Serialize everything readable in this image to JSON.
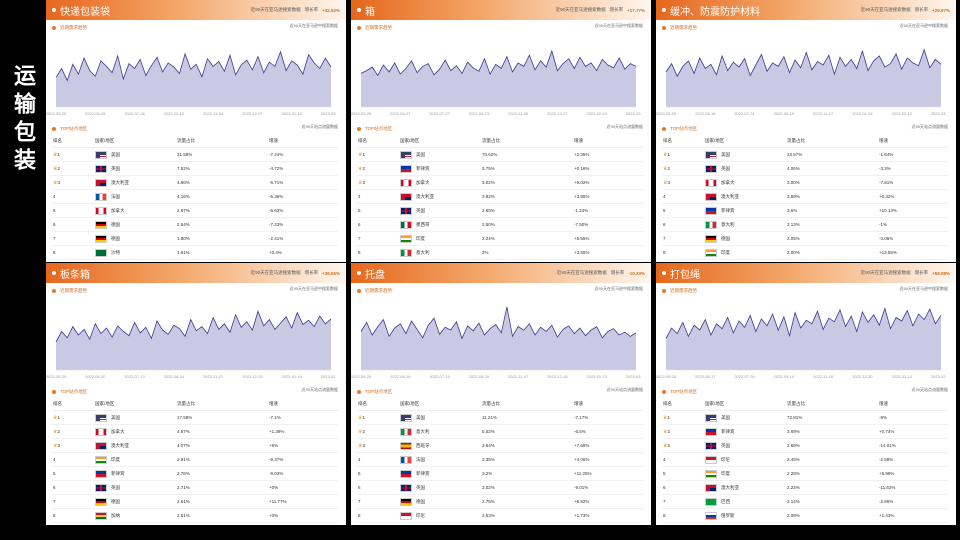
{
  "side_title": "运输包装",
  "colors": {
    "accent": "#e6671c",
    "line": "#3b3b8f",
    "fill": "#c9c9e3"
  },
  "cards": [
    {
      "title": "快递包装袋",
      "header": {
        "desc": "近90天在亚马逊搜索数据",
        "growth_label": "增长率",
        "growth": "+32.92%"
      },
      "trend_label": "近期需求趋势",
      "trend_note": "近90天在亚马逊中搜索数据",
      "dates": [
        "2022-05-25",
        "2022-06-25",
        "2022-07-26",
        "2022-09-10",
        "2022-11-04",
        "2022-12-07",
        "2023-01-12",
        "2023-03-01"
      ],
      "series": [
        42,
        55,
        38,
        61,
        47,
        70,
        52,
        44,
        66,
        58,
        49,
        73,
        40,
        62,
        55,
        68,
        45,
        59,
        71,
        50,
        63,
        57,
        48,
        76,
        54,
        61,
        43,
        69,
        58,
        65,
        51,
        74,
        46,
        60,
        67,
        53,
        72,
        49,
        64,
        58,
        79,
        52,
        66,
        60,
        47,
        75,
        63,
        55,
        70,
        57
      ],
      "top_label": "TOP站点地区",
      "top_note": "近90天站点流量数据",
      "columns": [
        "排名",
        "国家/地区",
        "流量占比",
        "增速"
      ],
      "rows": [
        {
          "rank": "1",
          "flag": "us",
          "country": "美国",
          "share": "31.58%",
          "growth": "-7.24%"
        },
        {
          "rank": "2",
          "flag": "gb",
          "country": "英国",
          "share": "7.52%",
          "growth": "-4.72%"
        },
        {
          "rank": "3",
          "flag": "au",
          "country": "澳大利亚",
          "share": "4.86%",
          "growth": "-5.71%"
        },
        {
          "rank": "4",
          "flag": "fr",
          "country": "法国",
          "share": "4.16%",
          "growth": "-5.36%"
        },
        {
          "rank": "5",
          "flag": "ca",
          "country": "加拿大",
          "share": "2.87%",
          "growth": "-5.63%"
        },
        {
          "rank": "6",
          "flag": "de",
          "country": "德国",
          "share": "2.54%",
          "growth": "-7.43%"
        },
        {
          "rank": "7",
          "flag": "de",
          "country": "德国",
          "share": "1.80%",
          "growth": "-2.41%"
        },
        {
          "rank": "8",
          "flag": "sa",
          "country": "沙特",
          "share": "1.61%",
          "growth": "+0.4%"
        }
      ]
    },
    {
      "title": "箱",
      "header": {
        "desc": "近90天在亚马逊搜索数据",
        "growth_label": "增长率",
        "growth": "+17.77%"
      },
      "trend_label": "近期需求趋势",
      "trend_note": "近90天在亚马逊中搜索数据",
      "dates": [
        "2022-05-25",
        "2022-06-27",
        "2022-07-27",
        "2022-09-23",
        "2022-11-05",
        "2022-12-27",
        "2023-02-04",
        "2023-03-05"
      ],
      "series": [
        48,
        52,
        57,
        45,
        60,
        50,
        63,
        47,
        55,
        66,
        49,
        58,
        62,
        46,
        54,
        67,
        52,
        59,
        48,
        64,
        56,
        51,
        69,
        47,
        61,
        55,
        72,
        50,
        63,
        58,
        74,
        53,
        66,
        57,
        80,
        52,
        62,
        69,
        55,
        71,
        58,
        63,
        52,
        68,
        60,
        56,
        70,
        54,
        62,
        58
      ],
      "top_label": "TOP站点地区",
      "top_note": "近90天站点流量数据",
      "columns": [
        "排名",
        "国家/地区",
        "流量占比",
        "增速"
      ],
      "rows": [
        {
          "rank": "1",
          "flag": "us",
          "country": "美国",
          "share": "70.62%",
          "growth": "+2.35%"
        },
        {
          "rank": "2",
          "flag": "ph",
          "country": "菲律宾",
          "share": "3.75%",
          "growth": "+0.16%"
        },
        {
          "rank": "3",
          "flag": "ca",
          "country": "加拿大",
          "share": "3.02%",
          "growth": "+5.02%"
        },
        {
          "rank": "4",
          "flag": "au",
          "country": "澳大利亚",
          "share": "3.82%",
          "growth": "+3.85%"
        },
        {
          "rank": "5",
          "flag": "gb",
          "country": "英国",
          "share": "2.60%",
          "growth": "-1.24%"
        },
        {
          "rank": "6",
          "flag": "mx",
          "country": "墨西哥",
          "share": "2.50%",
          "growth": "-7.50%"
        },
        {
          "rank": "7",
          "flag": "in",
          "country": "印度",
          "share": "2.24%",
          "growth": "+5.55%"
        },
        {
          "rank": "8",
          "flag": "it",
          "country": "意大利",
          "share": "2%",
          "growth": "+3.55%"
        }
      ]
    },
    {
      "title": "缓冲、防震防护材料",
      "header": {
        "desc": "近90天在亚马逊搜索数据",
        "growth_label": "增长率",
        "growth": "+29.97%"
      },
      "trend_label": "近期需求趋势",
      "trend_note": "近90天在亚马逊中搜索数据",
      "dates": [
        "2022-05-26",
        "2022-06-18",
        "2022-07-31",
        "2022-09-19",
        "2022-11-17",
        "2023-01-04",
        "2023-02-12",
        "2023-03-17"
      ],
      "series": [
        50,
        62,
        44,
        58,
        66,
        48,
        70,
        55,
        61,
        46,
        73,
        52,
        64,
        57,
        69,
        45,
        60,
        75,
        51,
        63,
        58,
        72,
        49,
        67,
        56,
        78,
        53,
        65,
        60,
        74,
        47,
        71,
        58,
        68,
        55,
        80,
        52,
        66,
        73,
        57,
        62,
        76,
        54,
        70,
        63,
        59,
        82,
        56,
        68,
        61
      ],
      "top_label": "TOP站点地区",
      "top_note": "近90天站点流量数据",
      "columns": [
        "排名",
        "国家/地区",
        "流量占比",
        "增速"
      ],
      "rows": [
        {
          "rank": "1",
          "flag": "us",
          "country": "美国",
          "share": "23.57%",
          "growth": "-1.64%"
        },
        {
          "rank": "2",
          "flag": "gb",
          "country": "英国",
          "share": "4.06%",
          "growth": "-3.3%"
        },
        {
          "rank": "3",
          "flag": "ca",
          "country": "加拿大",
          "share": "3.00%",
          "growth": "-7.61%"
        },
        {
          "rank": "4",
          "flag": "au",
          "country": "澳大利亚",
          "share": "3.69%",
          "growth": "+0.32%"
        },
        {
          "rank": "5",
          "flag": "ph",
          "country": "菲律宾",
          "share": "3.6%",
          "growth": "+10.13%"
        },
        {
          "rank": "6",
          "flag": "it",
          "country": "意大利",
          "share": "2.13%",
          "growth": "-1%"
        },
        {
          "rank": "7",
          "flag": "de",
          "country": "德国",
          "share": "2.05%",
          "growth": "-3.06%"
        },
        {
          "rank": "8",
          "flag": "in",
          "country": "印度",
          "share": "2.00%",
          "growth": "+13.55%"
        }
      ]
    },
    {
      "title": "板条箱",
      "header": {
        "desc": "近90天在亚马逊搜索数据",
        "growth_label": "增长率",
        "growth": "+36.55%"
      },
      "trend_label": "近期需求趋势",
      "trend_note": "近90天在亚马逊中搜索数据",
      "dates": [
        "2022-05-25",
        "2022-06-30",
        "2022-07-13",
        "2022-08-24",
        "2022-11-27",
        "2022-12-28",
        "2023-01-14",
        "2023-02-27"
      ],
      "series": [
        40,
        55,
        46,
        62,
        50,
        58,
        44,
        66,
        52,
        60,
        47,
        63,
        55,
        49,
        68,
        53,
        61,
        45,
        70,
        57,
        51,
        64,
        59,
        48,
        72,
        56,
        62,
        52,
        75,
        58,
        66,
        54,
        79,
        61,
        69,
        57,
        84,
        63,
        72,
        58,
        67,
        76,
        60,
        82,
        65,
        71,
        62,
        77,
        66,
        73
      ],
      "top_label": "TOP站点地区",
      "top_note": "近90天站点流量数据",
      "columns": [
        "排名",
        "国家/地区",
        "流量占比",
        "增速"
      ],
      "rows": [
        {
          "rank": "1",
          "flag": "us",
          "country": "美国",
          "share": "17.58%",
          "growth": "-7.1%"
        },
        {
          "rank": "2",
          "flag": "ca",
          "country": "加拿大",
          "share": "4.67%",
          "growth": "+1.39%"
        },
        {
          "rank": "3",
          "flag": "au",
          "country": "澳大利亚",
          "share": "4.07%",
          "growth": "+6%"
        },
        {
          "rank": "4",
          "flag": "in",
          "country": "印度",
          "share": "2.91%",
          "growth": "-9.37%"
        },
        {
          "rank": "5",
          "flag": "ph",
          "country": "菲律宾",
          "share": "2.76%",
          "growth": "-9.03%"
        },
        {
          "rank": "6",
          "flag": "gb",
          "country": "英国",
          "share": "2.71%",
          "growth": "+0%"
        },
        {
          "rank": "7",
          "flag": "de",
          "country": "德国",
          "share": "2.61%",
          "growth": "+11.77%"
        },
        {
          "rank": "8",
          "flag": "gh",
          "country": "加纳",
          "share": "2.51%",
          "growth": "+0%"
        }
      ]
    },
    {
      "title": "托盘",
      "header": {
        "desc": "近90天在亚马逊搜索数据",
        "growth_label": "增长率",
        "growth": "-10.23%"
      },
      "trend_label": "近期需求趋势",
      "trend_note": "近90天在亚马逊中搜索数据",
      "dates": [
        "2022-05-25",
        "2022-06-16",
        "2022-07-13",
        "2022-08-29",
        "2022-11-07",
        "2022-12-16",
        "2023-01-12",
        "2023-03-05"
      ],
      "series": [
        55,
        68,
        50,
        62,
        72,
        48,
        60,
        66,
        52,
        70,
        58,
        46,
        64,
        74,
        51,
        61,
        57,
        69,
        45,
        63,
        56,
        67,
        50,
        59,
        65,
        53,
        90,
        48,
        62,
        57,
        66,
        50,
        61,
        55,
        64,
        47,
        58,
        63,
        52,
        60,
        49,
        57,
        62,
        46,
        55,
        59,
        50,
        54,
        48,
        53
      ],
      "top_label": "TOP站点地区",
      "top_note": "近90天站点流量数据",
      "columns": [
        "排名",
        "国家/地区",
        "流量占比",
        "增速"
      ],
      "rows": [
        {
          "rank": "1",
          "flag": "us",
          "country": "美国",
          "share": "11.21%",
          "growth": "-7.17%"
        },
        {
          "rank": "2",
          "flag": "it",
          "country": "意大利",
          "share": "5.52%",
          "growth": "-6.5%"
        },
        {
          "rank": "3",
          "flag": "es",
          "country": "西班牙",
          "share": "3.64%",
          "growth": "+7.68%"
        },
        {
          "rank": "4",
          "flag": "fr",
          "country": "法国",
          "share": "3.35%",
          "growth": "+4.06%"
        },
        {
          "rank": "5",
          "flag": "ph",
          "country": "菲律宾",
          "share": "3.2%",
          "growth": "+11.25%"
        },
        {
          "rank": "6",
          "flag": "gb",
          "country": "英国",
          "share": "3.02%",
          "growth": "-9.01%"
        },
        {
          "rank": "7",
          "flag": "de",
          "country": "德国",
          "share": "2.75%",
          "growth": "+8.92%"
        },
        {
          "rank": "8",
          "flag": "id",
          "country": "印尼",
          "share": "2.53%",
          "growth": "+1.73%"
        }
      ]
    },
    {
      "title": "打包绳",
      "header": {
        "desc": "近90天在亚马逊搜索数据",
        "growth_label": "增长率",
        "growth": "+58.98%"
      },
      "trend_label": "近期需求趋势",
      "trend_note": "近90天在亚马逊中搜索数据",
      "dates": [
        "2022-05-26",
        "2022-06-17",
        "2022-07-30",
        "2022-09-14",
        "2022-11-26",
        "2022-12-30",
        "2023-01-14",
        "2023-02-26"
      ],
      "series": [
        45,
        60,
        52,
        68,
        48,
        64,
        57,
        72,
        50,
        66,
        59,
        75,
        53,
        70,
        61,
        78,
        55,
        73,
        63,
        80,
        57,
        76,
        49,
        82,
        60,
        71,
        66,
        84,
        58,
        74,
        69,
        86,
        62,
        77,
        55,
        83,
        68,
        79,
        64,
        88,
        59,
        75,
        70,
        85,
        63,
        80,
        72,
        87,
        66,
        78
      ],
      "top_label": "TOP站点地区",
      "top_note": "近90天站点流量数据",
      "columns": [
        "排名",
        "国家/地区",
        "流量占比",
        "增速"
      ],
      "rows": [
        {
          "rank": "1",
          "flag": "us",
          "country": "美国",
          "share": "72.81%",
          "growth": "-9%"
        },
        {
          "rank": "2",
          "flag": "ph",
          "country": "菲律宾",
          "share": "3.69%",
          "growth": "+0.74%"
        },
        {
          "rank": "3",
          "flag": "gb",
          "country": "英国",
          "share": "2.69%",
          "growth": "-14.01%"
        },
        {
          "rank": "4",
          "flag": "id",
          "country": "印尼",
          "share": "2.45%",
          "growth": "-2.59%"
        },
        {
          "rank": "5",
          "flag": "in",
          "country": "印度",
          "share": "2.28%",
          "growth": "+5.99%"
        },
        {
          "rank": "6",
          "flag": "au",
          "country": "澳大利亚",
          "share": "2.22%",
          "growth": "-11.62%"
        },
        {
          "rank": "7",
          "flag": "br",
          "country": "巴西",
          "share": "2.14%",
          "growth": "-2.86%"
        },
        {
          "rank": "8",
          "flag": "ru",
          "country": "俄罗斯",
          "share": "2.08%",
          "growth": "+1.43%"
        }
      ]
    }
  ]
}
